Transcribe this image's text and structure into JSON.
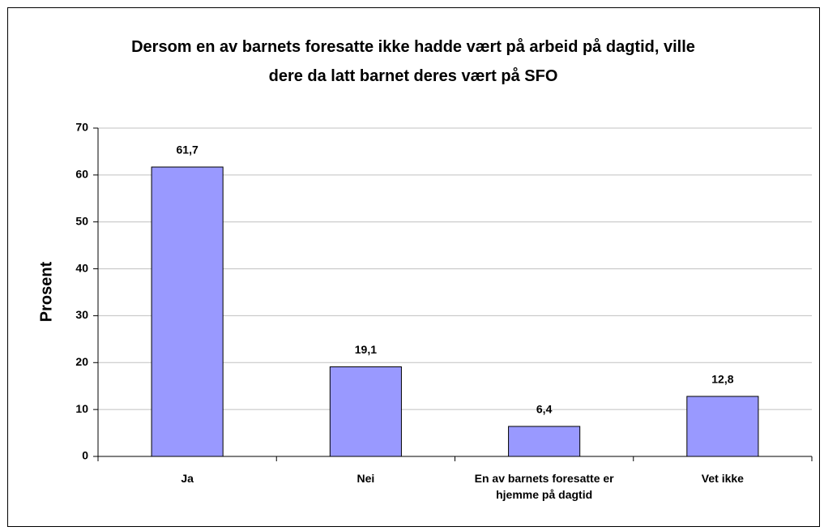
{
  "chart_data": {
    "type": "bar",
    "title": "Dersom en av barnets foresatte ikke hadde vært på arbeid på dagtid, ville dere da latt barnet deres vært på SFO",
    "y_label": "Prosent",
    "categories": [
      "Ja",
      "Nei",
      "En av barnets foresatte er hjemme på dagtid",
      "Vet ikke"
    ],
    "values": [
      61.7,
      19.1,
      6.4,
      12.8
    ],
    "value_labels": [
      "61,7",
      "19,1",
      "6,4",
      "12,8"
    ],
    "color": "#9999ff",
    "ylim": [
      0,
      70
    ],
    "yticks": [
      0,
      10,
      20,
      30,
      40,
      50,
      60,
      70
    ],
    "grid": true
  }
}
